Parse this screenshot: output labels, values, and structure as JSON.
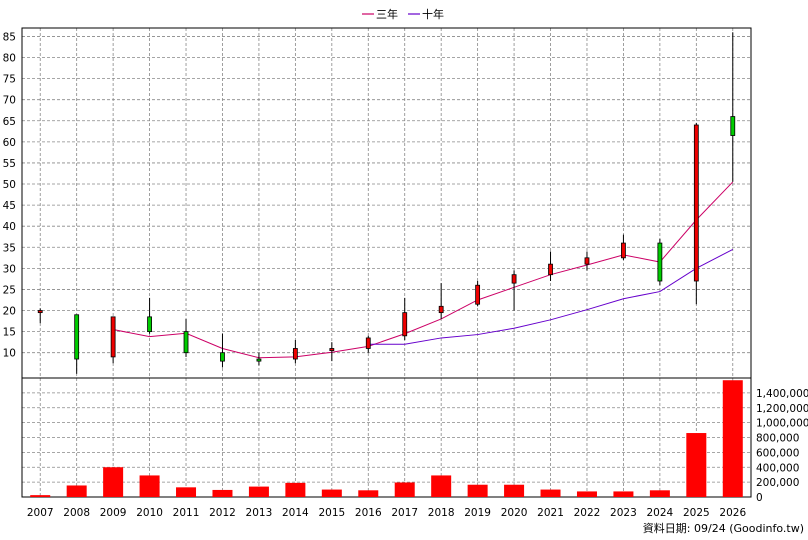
{
  "chart_data": {
    "type": "candlestick",
    "categories": [
      "2007",
      "2008",
      "2009",
      "2010",
      "2011",
      "2012",
      "2013",
      "2014",
      "2015",
      "2016",
      "2017",
      "2018",
      "2019",
      "2020",
      "2021",
      "2022",
      "2023",
      "2024",
      "2025",
      "2026"
    ],
    "price_axis": {
      "ylim": [
        4,
        87
      ],
      "ticks": [
        10,
        15,
        20,
        25,
        30,
        35,
        40,
        45,
        50,
        55,
        60,
        65,
        70,
        75,
        80,
        85
      ]
    },
    "volume_axis": {
      "ylim": [
        0,
        1600000
      ],
      "ticks": [
        "0",
        "200,000",
        "400,000",
        "600,000",
        "800,000",
        "1,000,000",
        "1,200,000",
        "1,400,000"
      ]
    },
    "legend": [
      {
        "name": "三年",
        "color": "#cc0066"
      },
      {
        "name": "十年",
        "color": "#6600cc"
      }
    ],
    "candles": [
      {
        "open": 19.5,
        "close": 20.0,
        "high": 20.5,
        "low": 17.0
      },
      {
        "open": 19.0,
        "close": 8.5,
        "high": 19.0,
        "low": 5.0
      },
      {
        "open": 9.0,
        "close": 18.5,
        "high": 18.5,
        "low": 7.5
      },
      {
        "open": 18.5,
        "close": 15.0,
        "high": 23.0,
        "low": 14.5
      },
      {
        "open": 15.0,
        "close": 10.0,
        "high": 18.0,
        "low": 9.0
      },
      {
        "open": 10.0,
        "close": 8.0,
        "high": 14.5,
        "low": 6.5
      },
      {
        "open": 8.5,
        "close": 8.0,
        "high": 10.0,
        "low": 7.0
      },
      {
        "open": 8.5,
        "close": 11.0,
        "high": 13.0,
        "low": 7.5
      },
      {
        "open": 10.5,
        "close": 11.0,
        "high": 12.5,
        "low": 8.0
      },
      {
        "open": 11.0,
        "close": 13.5,
        "high": 14.0,
        "low": 10.0
      },
      {
        "open": 14.0,
        "close": 19.5,
        "high": 23.0,
        "low": 13.0
      },
      {
        "open": 19.5,
        "close": 21.0,
        "high": 26.5,
        "low": 18.0
      },
      {
        "open": 21.5,
        "close": 26.0,
        "high": 27.0,
        "low": 21.0
      },
      {
        "open": 26.5,
        "close": 28.5,
        "high": 29.5,
        "low": 20.0
      },
      {
        "open": 28.5,
        "close": 31.0,
        "high": 34.0,
        "low": 27.0
      },
      {
        "open": 31.0,
        "close": 32.5,
        "high": 34.0,
        "low": 29.5
      },
      {
        "open": 32.5,
        "close": 36.0,
        "high": 38.0,
        "low": 32.0
      },
      {
        "open": 36.0,
        "close": 27.0,
        "high": 37.0,
        "low": 26.0
      },
      {
        "open": 27.0,
        "close": 64.0,
        "high": 64.5,
        "low": 21.5
      },
      {
        "open": 66.0,
        "close": 61.5,
        "high": 86.0,
        "low": 50.5
      }
    ],
    "ma_3y": [
      null,
      null,
      15.5,
      13.8,
      14.6,
      11.0,
      8.8,
      9.0,
      10.1,
      11.5,
      14.5,
      18.0,
      22.5,
      25.5,
      28.5,
      30.8,
      33.2,
      31.5,
      41.5,
      50.5
    ],
    "ma_10y": [
      null,
      null,
      null,
      null,
      null,
      null,
      null,
      null,
      null,
      12.0,
      12.0,
      13.5,
      14.3,
      15.8,
      17.8,
      20.2,
      22.8,
      24.5,
      30.0,
      34.5
    ],
    "volume": [
      25000,
      155000,
      400000,
      290000,
      130000,
      95000,
      140000,
      190000,
      100000,
      90000,
      195000,
      290000,
      165000,
      165000,
      100000,
      75000,
      75000,
      90000,
      860000,
      1570000
    ],
    "up_color": "#ee0000",
    "down_color": "#00cc00",
    "volume_color": "#ff0000"
  },
  "footer_note": "資料日期: 09/24  (Goodinfo.tw)"
}
